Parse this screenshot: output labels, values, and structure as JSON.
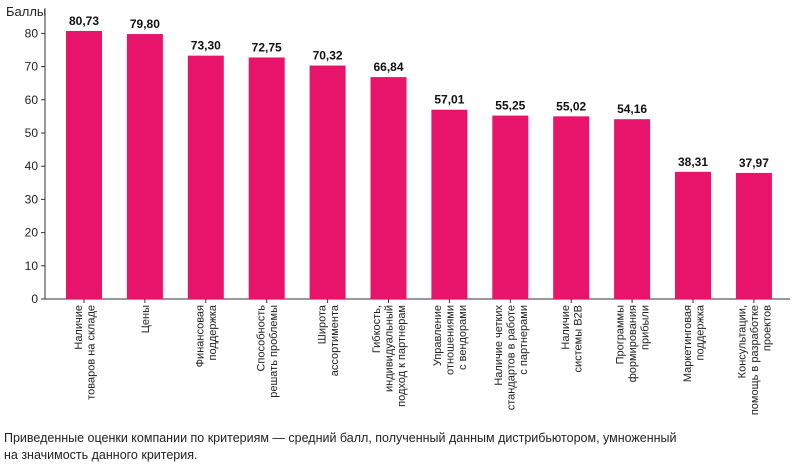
{
  "chart_data": {
    "type": "bar",
    "ylabel": "Баллы",
    "ylim": [
      0,
      90
    ],
    "yticks": [
      0,
      10,
      20,
      30,
      40,
      50,
      60,
      70,
      80
    ],
    "grid": false,
    "bar_color": "#e8146c",
    "categories": [
      [
        "Наличие",
        "товаров на складе"
      ],
      [
        "Цены"
      ],
      [
        "Финансовая",
        "поддержка"
      ],
      [
        "Способность",
        "решать проблемы"
      ],
      [
        "Широта",
        "ассортимента"
      ],
      [
        "Гибкость,",
        "индивидуальный",
        "подход к партнерам"
      ],
      [
        "Управление",
        "отношениями",
        "с вендорами"
      ],
      [
        "Наличие четких",
        "стандартов в работе",
        "с партнерами"
      ],
      [
        "Наличие",
        "системы B2B"
      ],
      [
        "Программы",
        "формирования",
        "прибыли"
      ],
      [
        "Маркетинговая",
        "поддержка"
      ],
      [
        "Консультации,",
        "помощь в разработке",
        "проектов"
      ]
    ],
    "values": [
      80.73,
      79.8,
      73.3,
      72.75,
      70.32,
      66.84,
      57.01,
      55.25,
      55.02,
      54.16,
      38.31,
      37.97
    ],
    "value_labels": [
      "80,73",
      "79,80",
      "73,30",
      "72,75",
      "70,32",
      "66,84",
      "57,01",
      "55,25",
      "55,02",
      "54,16",
      "38,31",
      "37,97"
    ]
  },
  "caption": {
    "line1": "Приведенные оценки компании по критериям — средний балл, полученный данным дистрибьютором, умноженный",
    "line2": "на значимость данного критерия."
  }
}
